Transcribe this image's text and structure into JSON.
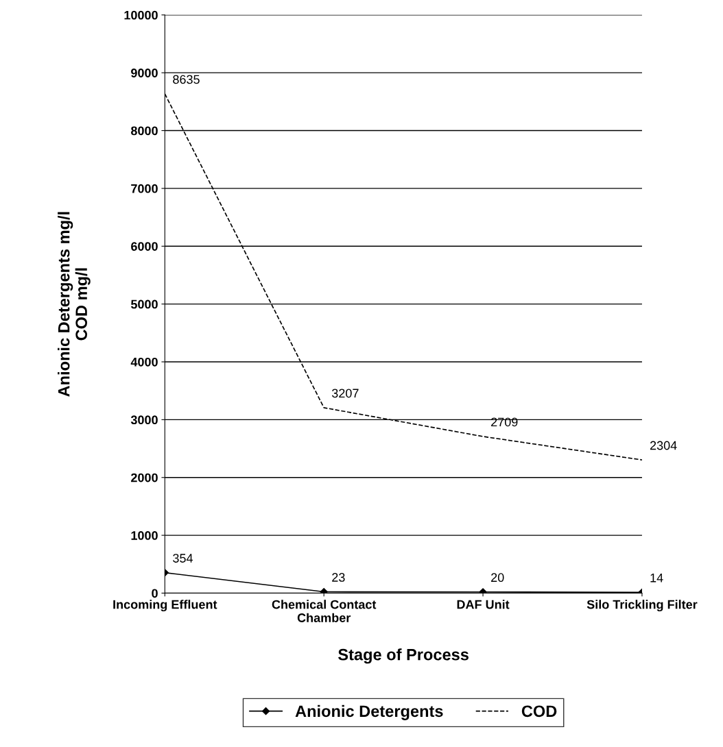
{
  "chart_data": {
    "type": "line",
    "xlabel": "Stage of Process",
    "ylabel": "Anionic Detergents mg/l\nCOD mg/l",
    "categories": [
      "Incoming Effluent",
      "Chemical Contact\nChamber",
      "DAF Unit",
      "Silo Trickling Filter"
    ],
    "series": [
      {
        "name": "Anionic Detergents",
        "color": "#000000",
        "values": [
          354,
          23,
          20,
          14
        ],
        "marker": "diamond",
        "line_style": "solid"
      },
      {
        "name": "COD",
        "color": "#000000",
        "values": [
          8635,
          3207,
          2709,
          2304
        ],
        "marker": "none",
        "line_style": "dashed"
      }
    ],
    "ylim": [
      0,
      10000
    ],
    "yticks": [
      0,
      1000,
      2000,
      3000,
      4000,
      5000,
      6000,
      7000,
      8000,
      9000,
      10000
    ],
    "grid": "y",
    "legend": "bottom",
    "data_labels": true
  }
}
